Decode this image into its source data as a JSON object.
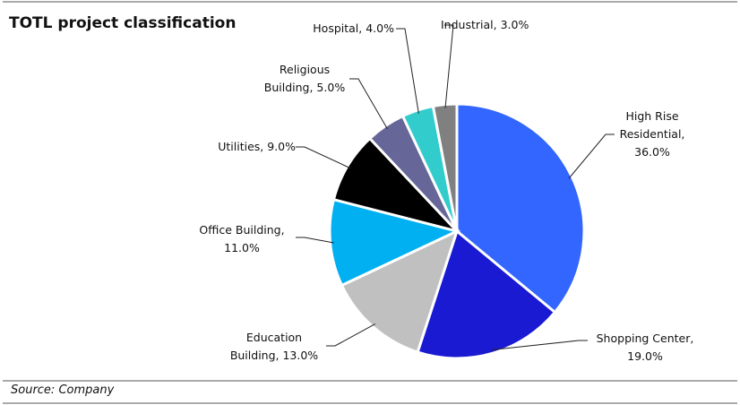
{
  "chart_data": {
    "type": "pie",
    "title": "TOTL project classification",
    "source": "Source: Company",
    "labels": [
      "High Rise Residential, 36.0%",
      "Shopping Center, 19.0%",
      "Education Building, 13.0%",
      "Office Building, 11.0%",
      "Utilities, 9.0%",
      "Religious Building, 5.0%",
      "Hospital, 4.0%",
      "Industrial, 3.0%"
    ],
    "values": [
      36,
      19,
      13,
      11,
      9,
      5,
      4,
      3
    ],
    "colors": [
      "#3366ff",
      "#1a1ad2",
      "#c0c0c0",
      "#00b0f0",
      "#000000",
      "#666699",
      "#33cccc",
      "#808080"
    ]
  }
}
